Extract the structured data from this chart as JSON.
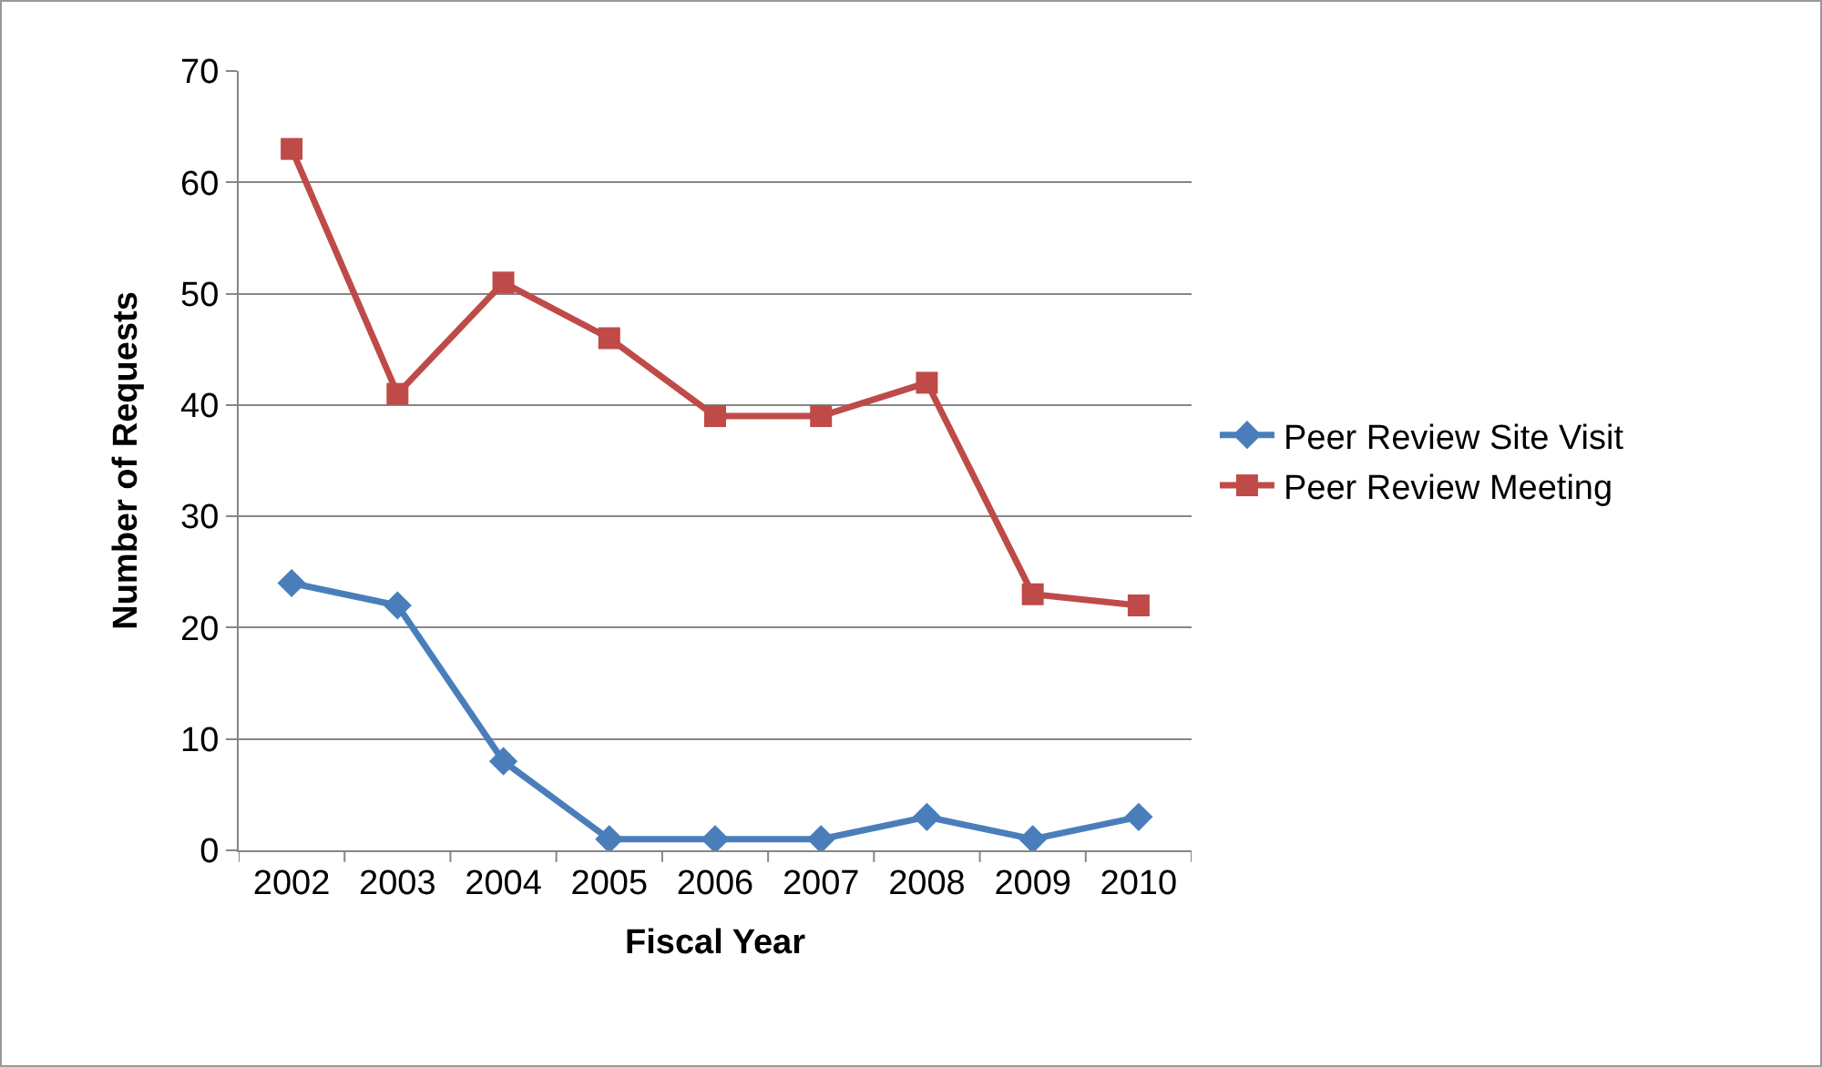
{
  "chart_data": {
    "type": "line",
    "xlabel": "Fiscal Year",
    "ylabel": "Number of Requests",
    "categories": [
      "2002",
      "2003",
      "2004",
      "2005",
      "2006",
      "2007",
      "2008",
      "2009",
      "2010"
    ],
    "series": [
      {
        "name": "Peer Review Site Visit",
        "color": "#4a7ebb",
        "marker": "diamond",
        "values": [
          24,
          22,
          8,
          1,
          1,
          1,
          3,
          1,
          3
        ]
      },
      {
        "name": "Peer Review Meeting",
        "color": "#be4b48",
        "marker": "square",
        "values": [
          63,
          41,
          51,
          46,
          39,
          39,
          42,
          23,
          22
        ]
      }
    ],
    "ylim": [
      0,
      70
    ],
    "yticks": [
      0,
      10,
      20,
      30,
      40,
      50,
      60,
      70
    ],
    "grid": "y",
    "legend": "right",
    "line_style": "solid"
  }
}
